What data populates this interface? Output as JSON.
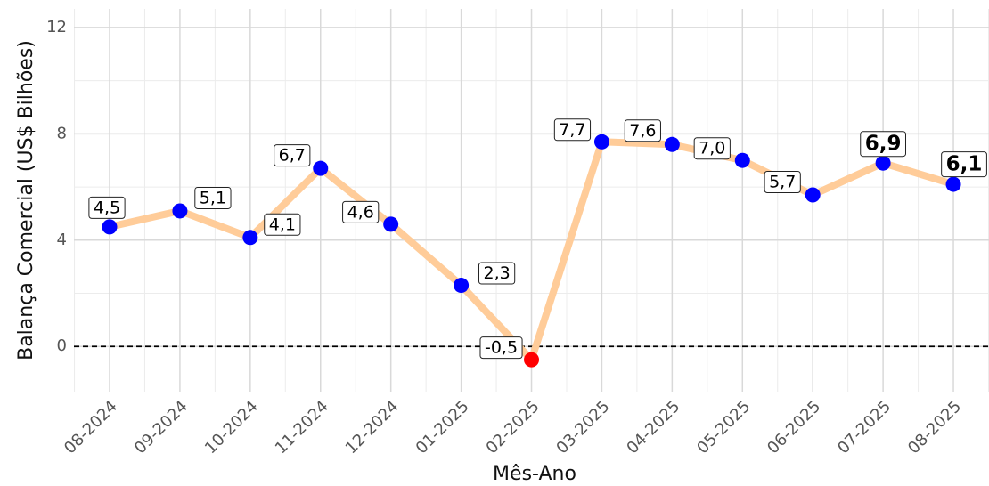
{
  "chart_data": {
    "type": "line",
    "x_label": "Mês-Ano",
    "y_label": "Balança Comercial (US$ Bilhões)",
    "categories": [
      "08-2024",
      "09-2024",
      "10-2024",
      "11-2024",
      "12-2024",
      "01-2025",
      "02-2025",
      "03-2025",
      "04-2025",
      "05-2025",
      "06-2025",
      "07-2025",
      "08-2025"
    ],
    "values": [
      4.5,
      5.1,
      4.1,
      6.7,
      4.6,
      2.3,
      -0.5,
      7.7,
      7.6,
      7.0,
      5.7,
      6.9,
      6.1
    ],
    "value_labels": [
      "4,5",
      "5,1",
      "4,1",
      "6,7",
      "4,6",
      "2,3",
      "-0,5",
      "7,7",
      "7,6",
      "7,0",
      "5,7",
      "6,9",
      "6,1"
    ],
    "line_color": "#ffcc99",
    "point_color": "#0000ff",
    "negative_color": "#ff0000",
    "bold_labels": [
      11,
      12
    ],
    "hline": 0,
    "ylim": [
      -1.7,
      12.7
    ],
    "yticks": [
      0,
      4,
      8,
      12
    ],
    "minor_yticks": [
      2,
      6,
      10
    ],
    "grid": true
  }
}
